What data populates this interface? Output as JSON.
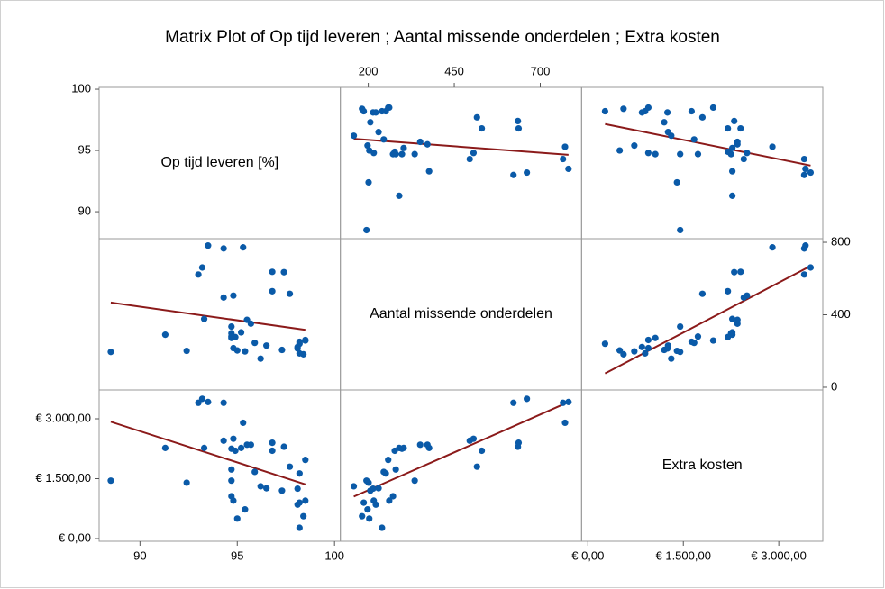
{
  "chart_data": {
    "type": "scatter_matrix",
    "title": "Matrix Plot of Op tijd leveren ; Aantal missende onderdelen ; Extra kosten",
    "color": "#0a5aa8",
    "fit_line": true,
    "fit_color": "#8b1a1a",
    "variables": [
      {
        "name": "Op tijd leveren [%]",
        "values": [
          96.2,
          98.4,
          98.2,
          95.4,
          92.4,
          95.0,
          97.3,
          98.1,
          94.8,
          98.1,
          96.5,
          98.2,
          95.9,
          98.2,
          98.5,
          98.5,
          94.7,
          94.9,
          94.7,
          91.3,
          94.7,
          95.2,
          94.7,
          95.7,
          95.5,
          93.3,
          94.3,
          94.8,
          97.7,
          96.8,
          93.0,
          97.4,
          96.8,
          93.2,
          94.3,
          95.3,
          93.5,
          88.5
        ],
        "hlim": [
          87.9,
          100.3
        ],
        "vlim": [
          87.8,
          100.15
        ],
        "hticks": [
          90,
          95,
          100
        ],
        "vticks": [
          90,
          95,
          100
        ],
        "hticks_side": "bottom",
        "vticks_side": "left"
      },
      {
        "name": "Aantal missende onderdelen",
        "values": [
          158,
          182,
          187,
          198,
          201,
          203,
          206,
          214,
          216,
          222,
          230,
          240,
          245,
          251,
          258,
          261,
          272,
          277,
          280,
          290,
          298,
          303,
          335,
          351,
          372,
          377,
          495,
          506,
          516,
          530,
          622,
          635,
          637,
          661,
          766,
          772,
          782,
          195
        ],
        "hlim": [
          119,
          820
        ],
        "vlim": [
          -15,
          820
        ],
        "hticks": [
          200,
          450,
          700
        ],
        "vticks": [
          0,
          400,
          800
        ],
        "hticks_side": "top",
        "vticks_side": "right"
      },
      {
        "name": "Extra kosten",
        "values": [
          1310,
          560,
          900,
          730,
          1400,
          500,
          1200,
          1250,
          950,
          850,
          1260,
          270,
          1670,
          1630,
          1970,
          950,
          1060,
          2200,
          1730,
          2270,
          2250,
          2270,
          1450,
          2350,
          2350,
          2270,
          2450,
          2500,
          1800,
          2200,
          3400,
          2300,
          2400,
          3500,
          3400,
          2900,
          3420,
          1450
        ],
        "hlim": [
          -99,
          3692
        ],
        "vlim": [
          -68,
          3722
        ],
        "hticks": [
          {
            "value": 0,
            "label": "€ 0,00"
          },
          {
            "value": 1500,
            "label": "€ 1.500,00"
          },
          {
            "value": 3000,
            "label": "€ 3.000,00"
          }
        ],
        "vticks": [
          {
            "value": 0,
            "label": "€ 0,00"
          },
          {
            "value": 1500,
            "label": "€ 1.500,00"
          },
          {
            "value": 3000,
            "label": "€ 3.000,00"
          }
        ],
        "hticks_side": "bottom",
        "vticks_side": "left"
      }
    ]
  }
}
